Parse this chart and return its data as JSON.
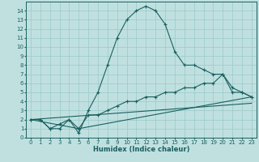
{
  "xlabel": "Humidex (Indice chaleur)",
  "bg_color": "#c0e0e0",
  "grid_color": "#a0cccc",
  "line_color": "#1a6060",
  "xlim": [
    -0.5,
    23.5
  ],
  "ylim": [
    0,
    15
  ],
  "xticks": [
    0,
    1,
    2,
    3,
    4,
    5,
    6,
    7,
    8,
    9,
    10,
    11,
    12,
    13,
    14,
    15,
    16,
    17,
    18,
    19,
    20,
    21,
    22,
    23
  ],
  "yticks": [
    0,
    1,
    2,
    3,
    4,
    5,
    6,
    7,
    8,
    9,
    10,
    11,
    12,
    13,
    14
  ],
  "line1_x": [
    0,
    1,
    2,
    3,
    4,
    5,
    6,
    7,
    8,
    9,
    10,
    11,
    12,
    13,
    14,
    15,
    16,
    17,
    18,
    19,
    20,
    21,
    22,
    23
  ],
  "line1_y": [
    2,
    2,
    1,
    1,
    2,
    0.5,
    3,
    5,
    8,
    11,
    13,
    14,
    14.5,
    14,
    12.5,
    9.5,
    8,
    8,
    7.5,
    7,
    7,
    5.5,
    5,
    4.5
  ],
  "line2_x": [
    0,
    1,
    2,
    3,
    4,
    5,
    6,
    7,
    8,
    9,
    10,
    11,
    12,
    13,
    14,
    15,
    16,
    17,
    18,
    19,
    20,
    21,
    22,
    23
  ],
  "line2_y": [
    2,
    2,
    1,
    1.5,
    2,
    1,
    2.5,
    2.5,
    3,
    3.5,
    4,
    4,
    4.5,
    4.5,
    5,
    5,
    5.5,
    5.5,
    6,
    6,
    7,
    5,
    5,
    4.5
  ],
  "line3_x": [
    0,
    23
  ],
  "line3_y": [
    2,
    3.8
  ],
  "line4_x": [
    0,
    5,
    23
  ],
  "line4_y": [
    2,
    1,
    4.5
  ],
  "fontsize_ticks": 5,
  "fontsize_label": 6
}
